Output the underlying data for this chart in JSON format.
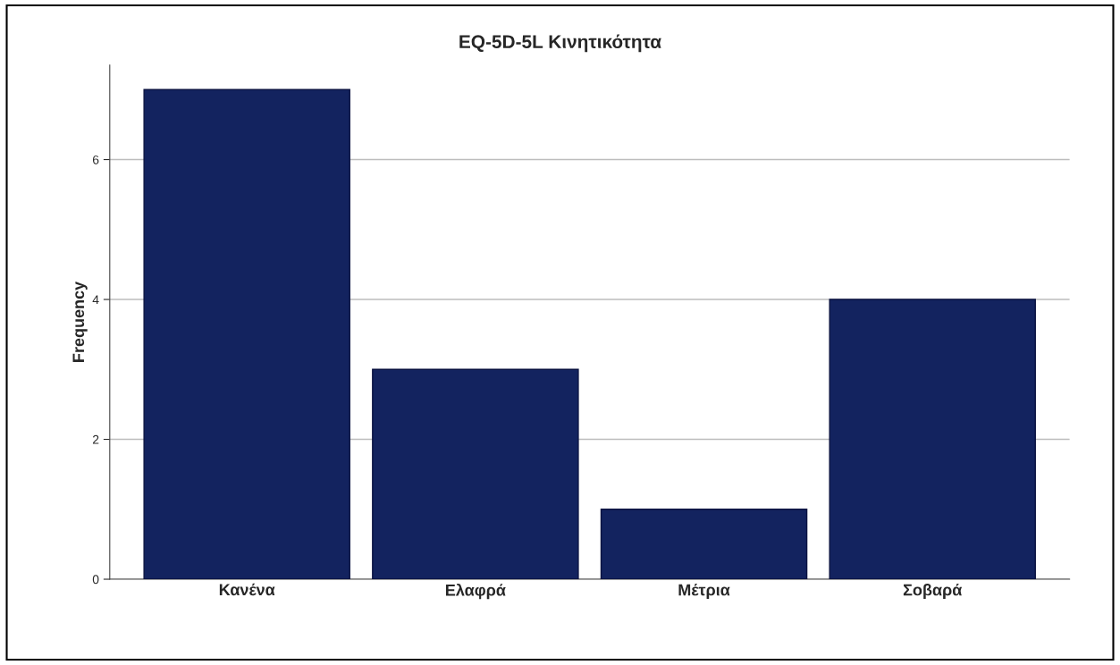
{
  "chart_data": {
    "type": "bar",
    "title": "EQ-5D-5L Κινητικότητα",
    "ylabel": "Frequency",
    "categories": [
      "Κανένα",
      "Ελαφρά",
      "Μέτρια",
      "Σοβαρά"
    ],
    "values": [
      7,
      3,
      1,
      4
    ],
    "color": "#13235f",
    "ylim": [
      0,
      7.35
    ],
    "yticks": [
      0,
      2,
      4,
      6
    ],
    "grid": "y"
  }
}
